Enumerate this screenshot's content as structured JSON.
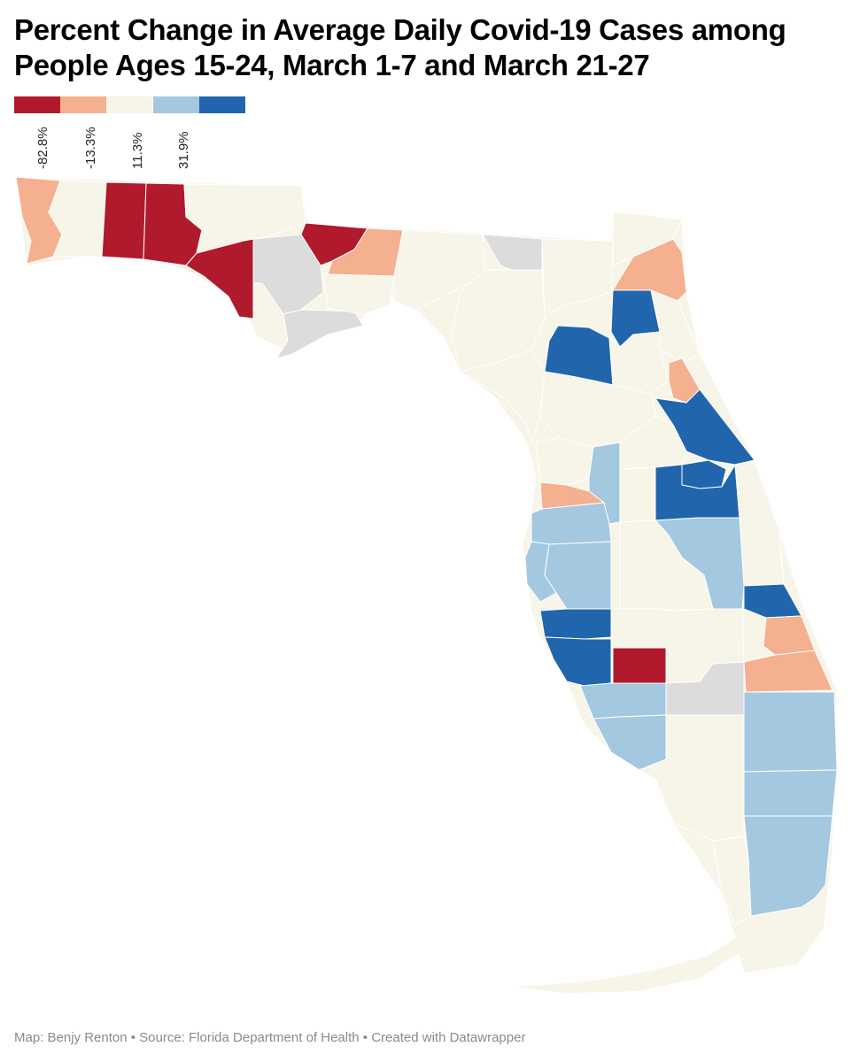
{
  "title": "Percent Change in Average Daily Covid-19 Cases among People Ages 15-24, March 1-7 and March 21-27",
  "legend": {
    "colors": [
      "#b01a2c",
      "#f4b08f",
      "#f7f4e8",
      "#a3c8e0",
      "#2166ac"
    ],
    "ticks": [
      "-82.8%",
      "-13.3%",
      "11.3%",
      "31.9%"
    ]
  },
  "map_colors": {
    "strong_decrease": "#b01a2c",
    "decrease": "#f4b08f",
    "neutral": "#f7f4e8",
    "increase": "#a3c8e0",
    "strong_increase": "#2166ac",
    "no_data": "#dcdcdc",
    "border": "#ffffff"
  },
  "footer": "Map: Benjy Renton • Source: Florida Department of Health • Created with Datawrapper"
}
